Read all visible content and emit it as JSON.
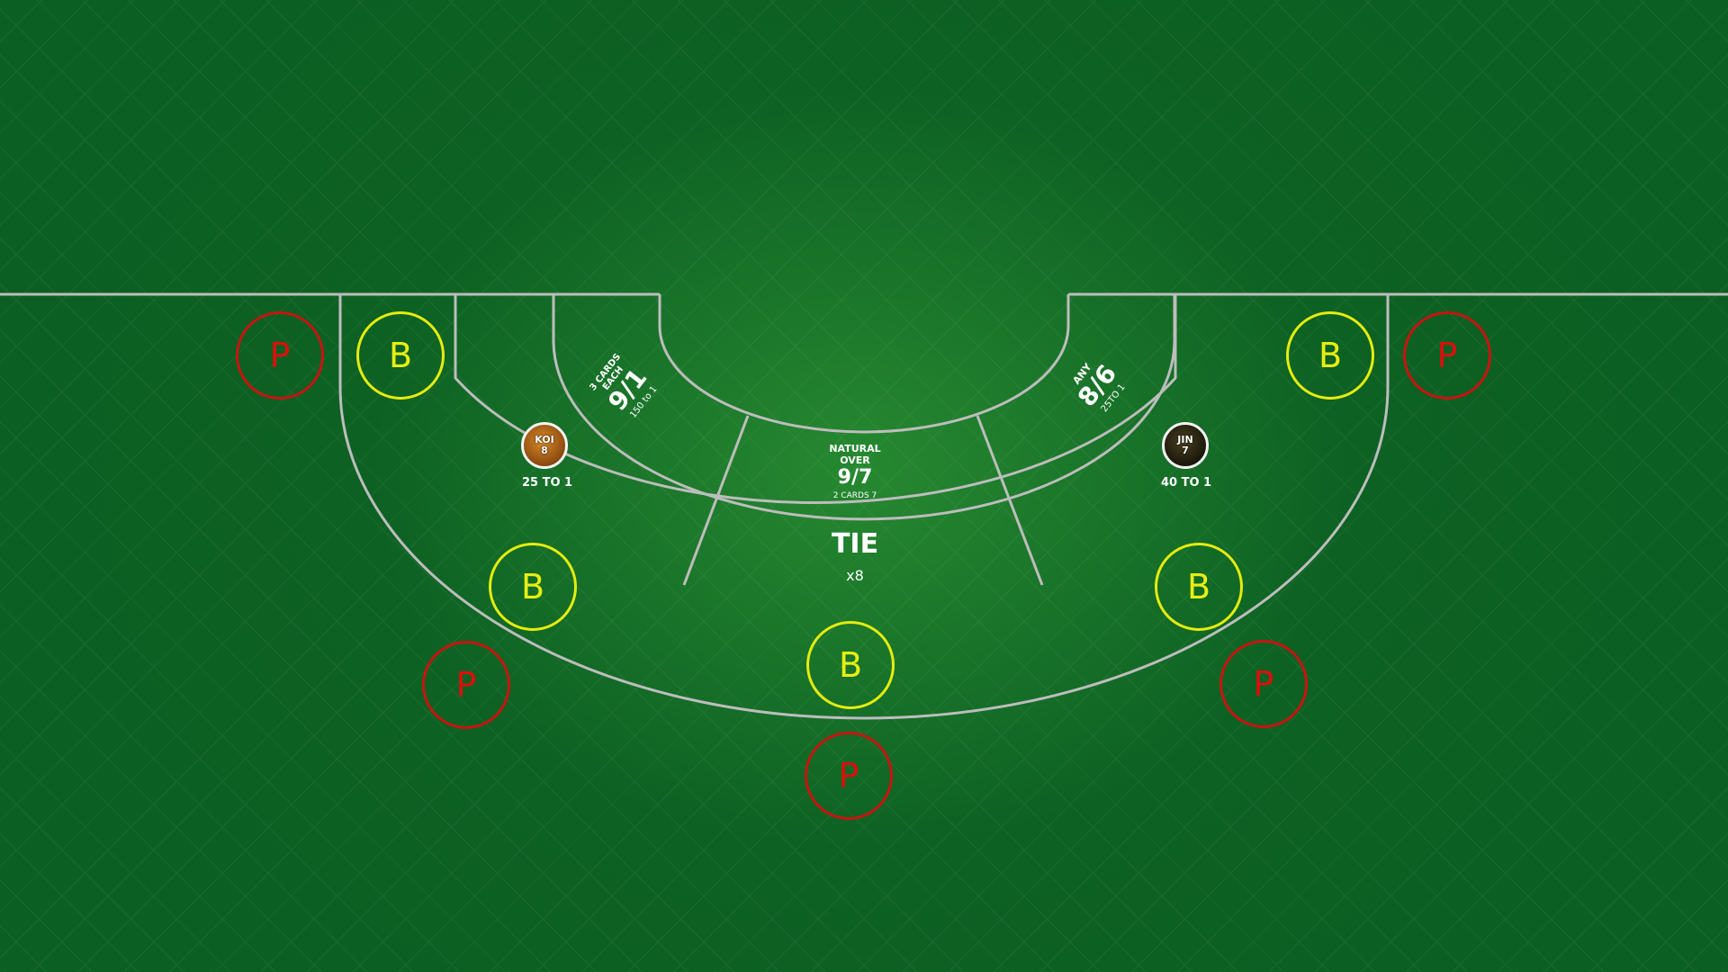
{
  "colors": {
    "felt": "#0c5f22",
    "line": "#bdbdbd",
    "player_circle": "#c81410",
    "banker_circle": "#e5ec10"
  },
  "player_spots": [
    "P",
    "P",
    "P",
    "P",
    "P"
  ],
  "banker_spots": [
    "B",
    "B",
    "B",
    "B",
    "B"
  ],
  "left_token": {
    "name": "KOI",
    "value": "8",
    "payout": "25 TO 1"
  },
  "right_token": {
    "name": "JIN",
    "value": "7",
    "payout": "40 TO 1"
  },
  "left_side_bet": {
    "line1": "3 CARDS",
    "line2": "EACH",
    "odds": "9/1",
    "sub": "150 to 1"
  },
  "right_side_bet": {
    "line1": "ANY",
    "odds": "8/6",
    "sub": "25TO 1"
  },
  "natural_bet": {
    "line1": "NATURAL",
    "line2": "OVER",
    "odds": "9/7",
    "sub": "2 CARDS 7"
  },
  "tie_bet": {
    "label": "TIE",
    "multiplier": "x8"
  }
}
